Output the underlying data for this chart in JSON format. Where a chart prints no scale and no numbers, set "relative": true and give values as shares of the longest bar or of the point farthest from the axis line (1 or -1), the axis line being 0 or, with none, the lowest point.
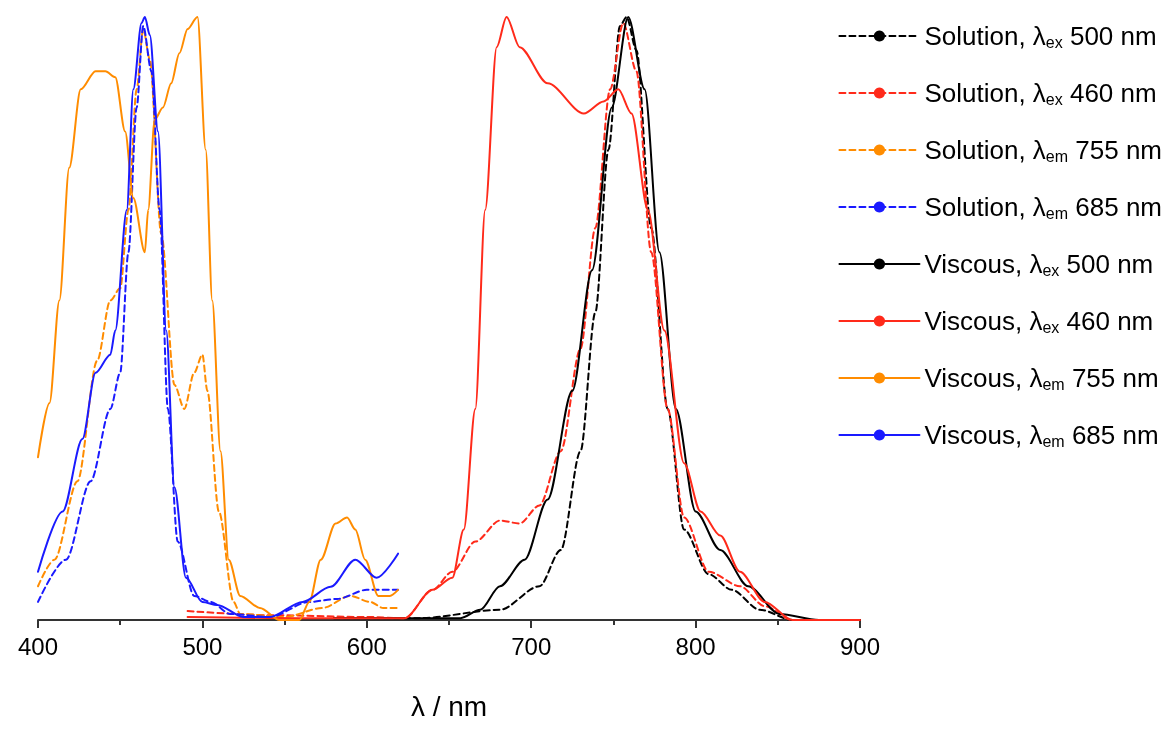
{
  "chart_data": {
    "type": "line",
    "relative": true,
    "xlabel": "λ / nm",
    "xlim": [
      400,
      900
    ],
    "xticks": [
      400,
      500,
      600,
      700,
      800,
      900
    ],
    "legend": "top right",
    "grid": false,
    "marker": "none",
    "series": [
      {
        "name": "Solution, λ$_{ex}$ 500 nm",
        "color": "#000000",
        "line_style": "dashed",
        "x": [
          580,
          632,
          681,
          705,
          718,
          730,
          739,
          747,
          754,
          758,
          764,
          773,
          783,
          793,
          808,
          822,
          839,
          859,
          900
        ],
        "values": [
          0.003,
          0.003,
          0.017,
          0.056,
          0.116,
          0.28,
          0.51,
          0.78,
          0.985,
          1.0,
          0.945,
          0.65,
          0.35,
          0.15,
          0.076,
          0.05,
          0.017,
          0,
          0
        ]
      },
      {
        "name": "Solution, λ$_{ex}$ 460 nm",
        "color": "#ff2a1a",
        "line_style": "dashed",
        "x": [
          491,
          540,
          600,
          623,
          640,
          652,
          666,
          681,
          693,
          705,
          718,
          730,
          739,
          748,
          756,
          764,
          773,
          783,
          793,
          808,
          827,
          842,
          859,
          900
        ],
        "values": [
          0.015,
          0.008,
          0.005,
          0.003,
          0.05,
          0.08,
          0.13,
          0.165,
          0.16,
          0.19,
          0.28,
          0.45,
          0.65,
          0.88,
          0.99,
          0.91,
          0.61,
          0.35,
          0.17,
          0.08,
          0.056,
          0.023,
          0,
          0
        ]
      },
      {
        "name": "Solution, λ$_{em}$ 755 nm",
        "color": "#ff8c00",
        "line_style": "dashed",
        "x": [
          400,
          410,
          424,
          436,
          444,
          450,
          455,
          460,
          464,
          468,
          475,
          483,
          489,
          495,
          500,
          503,
          510,
          519,
          523,
          550,
          573,
          590,
          602,
          610,
          619
        ],
        "values": [
          0.056,
          0.1,
          0.23,
          0.43,
          0.53,
          0.55,
          0.68,
          0.88,
          0.98,
          0.93,
          0.64,
          0.39,
          0.35,
          0.41,
          0.44,
          0.38,
          0.18,
          0.03,
          0.01,
          0.005,
          0.02,
          0.04,
          0.03,
          0.02,
          0.02
        ]
      },
      {
        "name": "Solution, λ$_{em}$ 685 nm",
        "color": "#1a1aff",
        "line_style": "dashed",
        "x": [
          400,
          417,
          432,
          444,
          450,
          455,
          460,
          464,
          469,
          474,
          479,
          485,
          495,
          505,
          517,
          541,
          565,
          582,
          600,
          619
        ],
        "values": [
          0.03,
          0.1,
          0.23,
          0.35,
          0.41,
          0.61,
          0.85,
          0.985,
          0.91,
          0.68,
          0.35,
          0.13,
          0.04,
          0.03,
          0.01,
          0.005,
          0.03,
          0.035,
          0.05,
          0.05
        ]
      },
      {
        "name": "Viscous, λ$_{ex}$ 500 nm",
        "color": "#000000",
        "line_style": "solid",
        "x": [
          580,
          657,
          669,
          681,
          696,
          710,
          725,
          737,
          749,
          759,
          769,
          778,
          788,
          800,
          815,
          832,
          851,
          875,
          900
        ],
        "values": [
          0.003,
          0.003,
          0.017,
          0.056,
          0.1,
          0.2,
          0.38,
          0.58,
          0.85,
          1.0,
          0.88,
          0.61,
          0.35,
          0.18,
          0.116,
          0.056,
          0.01,
          0,
          0
        ]
      },
      {
        "name": "Viscous, λ$_{ex}$ 460 nm",
        "color": "#ff2a1a",
        "line_style": "solid",
        "x": [
          491,
          560,
          608,
          623,
          640,
          652,
          659,
          666,
          672,
          679,
          685,
          693,
          710,
          732,
          744,
          753,
          761,
          771,
          781,
          793,
          803,
          815,
          827,
          842,
          859,
          900
        ],
        "values": [
          0.005,
          0.003,
          0.003,
          0.003,
          0.05,
          0.07,
          0.15,
          0.35,
          0.68,
          0.95,
          1.0,
          0.95,
          0.89,
          0.84,
          0.86,
          0.88,
          0.84,
          0.68,
          0.48,
          0.26,
          0.18,
          0.14,
          0.08,
          0.03,
          0,
          0
        ]
      },
      {
        "name": "Viscous, λ$_{em}$ 755 nm",
        "color": "#ff8c00",
        "line_style": "solid",
        "x": [
          400,
          407,
          413,
          419,
          426,
          435,
          441,
          447,
          453,
          458,
          465,
          467,
          471,
          476,
          481,
          486,
          491,
          497,
          502,
          506,
          511,
          516,
          523,
          535,
          547,
          559,
          565,
          572,
          581,
          588,
          593,
          599,
          607,
          614,
          619
        ],
        "values": [
          0.27,
          0.36,
          0.53,
          0.75,
          0.88,
          0.91,
          0.91,
          0.9,
          0.81,
          0.7,
          0.61,
          0.68,
          0.83,
          0.85,
          0.89,
          0.94,
          0.98,
          1.0,
          0.78,
          0.53,
          0.28,
          0.1,
          0.04,
          0.02,
          0,
          0,
          0.03,
          0.1,
          0.16,
          0.17,
          0.15,
          0.1,
          0.04,
          0.04,
          0.05
        ]
      },
      {
        "name": "Viscous, λ$_{em}$ 685 nm",
        "color": "#1a1aff",
        "line_style": "solid",
        "x": [
          400,
          415,
          427,
          435,
          444,
          447,
          454,
          458,
          463,
          465,
          468,
          473,
          478,
          483,
          490,
          500,
          509,
          525,
          541,
          561,
          578,
          593,
          606,
          619
        ],
        "values": [
          0.08,
          0.18,
          0.3,
          0.41,
          0.44,
          0.48,
          0.68,
          0.88,
          0.99,
          1.0,
          0.97,
          0.81,
          0.48,
          0.22,
          0.07,
          0.03,
          0.025,
          0.005,
          0.005,
          0.03,
          0.055,
          0.1,
          0.07,
          0.11
        ]
      }
    ]
  }
}
